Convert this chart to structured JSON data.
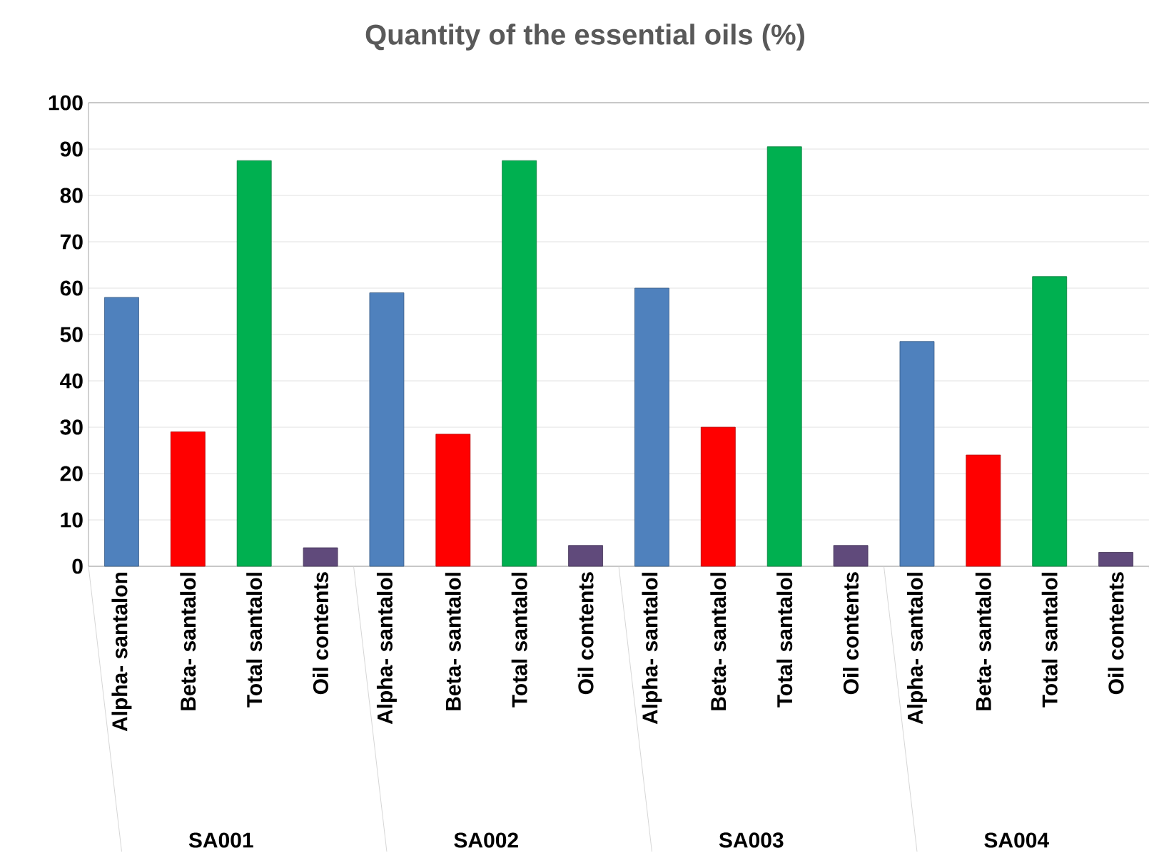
{
  "chart_data": {
    "type": "bar",
    "title": "Quantity of the essential oils (%)",
    "categories": [
      "Alpha- santalon",
      "Beta- santalol",
      "Total santalol",
      "Oil contents",
      "Alpha- santalol",
      "Beta- santalol",
      "Total santalol",
      "Oil contents",
      "Alpha- santalol",
      "Beta- santalol",
      "Total santalol",
      "Oil contents",
      "Alpha- santalol",
      "Beta- santalol",
      "Total santalol",
      "Oil contents"
    ],
    "values": [
      58,
      29,
      87.5,
      4,
      59,
      28.5,
      87.5,
      4.5,
      60,
      30,
      90.5,
      4.5,
      48.5,
      24,
      62.5,
      3
    ],
    "colors": [
      "#4f81bd",
      "#ff0000",
      "#00b050",
      "#604a7b",
      "#4f81bd",
      "#ff0000",
      "#00b050",
      "#604a7b",
      "#4f81bd",
      "#ff0000",
      "#00b050",
      "#604a7b",
      "#4f81bd",
      "#ff0000",
      "#00b050",
      "#604a7b"
    ],
    "ylim": [
      0,
      100
    ],
    "yticks": [
      0,
      10,
      20,
      30,
      40,
      50,
      60,
      70,
      80,
      90,
      100
    ],
    "grid": "y",
    "annotations": [
      "SA001",
      "SA002",
      "SA003",
      "SA004"
    ]
  }
}
